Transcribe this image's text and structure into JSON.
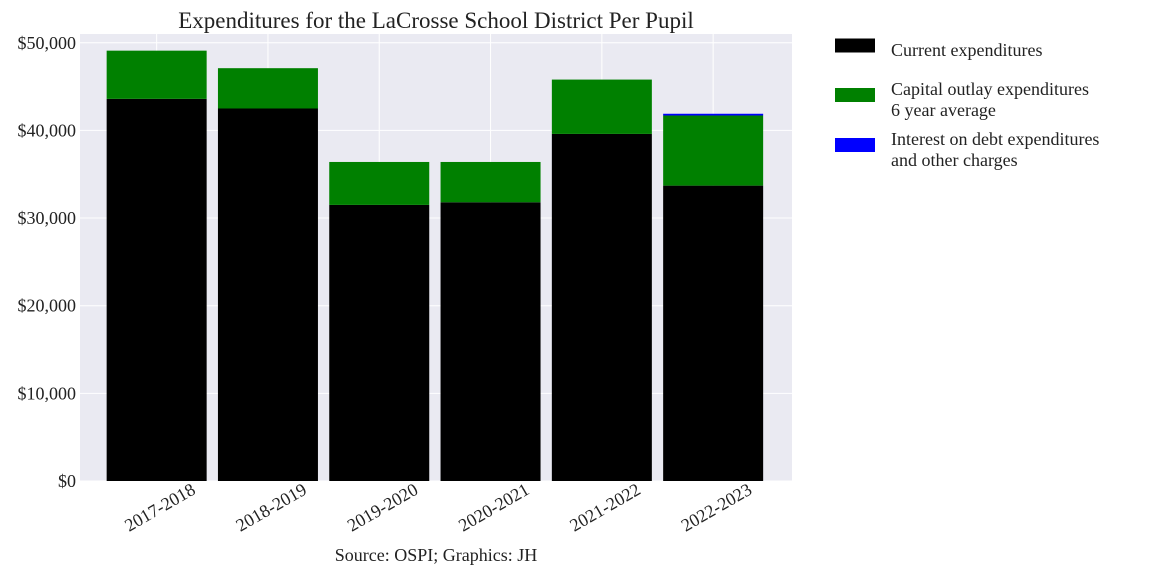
{
  "chart_data": {
    "type": "bar",
    "stacked": true,
    "title": "Expenditures for the LaCrosse School District Per Pupil",
    "xlabel": "Source: OSPI; Graphics: JH",
    "ylabel": "",
    "categories": [
      "2017-2018",
      "2018-2019",
      "2019-2020",
      "2020-2021",
      "2021-2022",
      "2022-2023"
    ],
    "series": [
      {
        "name": "Current expenditures",
        "color": "#000000",
        "values": [
          43600,
          42500,
          31500,
          31800,
          39600,
          33700
        ]
      },
      {
        "name": "Capital outlay expenditures\n6 year average",
        "color": "#008000",
        "values": [
          5500,
          4600,
          4900,
          4600,
          6200,
          8000
        ]
      },
      {
        "name": "Interest on debt expenditures\nand other charges",
        "color": "#0000ff",
        "values": [
          0,
          0,
          0,
          0,
          0,
          200
        ]
      }
    ],
    "ylim": [
      0,
      51000
    ],
    "yticks": [
      0,
      10000,
      20000,
      30000,
      40000,
      50000
    ],
    "ytick_labels": [
      "$0",
      "$10,000",
      "$20,000",
      "$30,000",
      "$40,000",
      "$50,000"
    ],
    "grid": true,
    "legend_position": "outside-right-top"
  }
}
